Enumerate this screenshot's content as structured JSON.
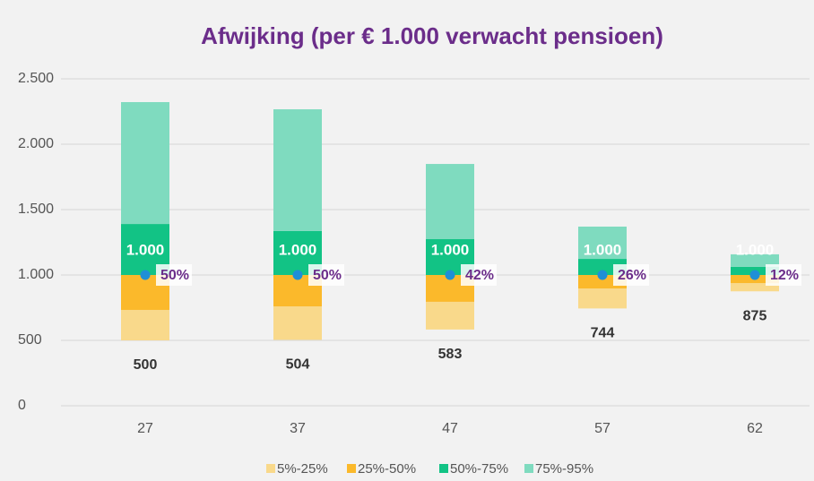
{
  "chart_data": {
    "type": "floating_stacked_bar",
    "title": "Afwijking (per € 1.000 verwacht pensioen)",
    "categories": [
      "27",
      "37",
      "47",
      "57",
      "62"
    ],
    "base_values": [
      500,
      504,
      583,
      744,
      875
    ],
    "series": [
      {
        "name": "5%-25%",
        "color": "#f9d98b",
        "values": [
          233,
          256,
          212,
          153,
          63
        ]
      },
      {
        "name": "25%-50%",
        "color": "#fbb92b",
        "values": [
          267,
          240,
          205,
          103,
          62
        ]
      },
      {
        "name": "50%-75%",
        "color": "#12c385",
        "values": [
          390,
          336,
          274,
          123,
          62
        ]
      },
      {
        "name": "75%-95%",
        "color": "#7fdbbf",
        "values": [
          932,
          931,
          575,
          247,
          96
        ]
      }
    ],
    "median_values": [
      1000,
      1000,
      1000,
      1000,
      1000
    ],
    "median_value_labels": [
      "1.000",
      "1.000",
      "1.000",
      "1.000",
      "1.000"
    ],
    "median_color": "#1f8fd6",
    "percent_labels": [
      "50%",
      "50%",
      "42%",
      "26%",
      "12%"
    ],
    "ylim": [
      0,
      2500
    ],
    "yticks": [
      0,
      500,
      {
        "value": 1000,
        "label": "1.000"
      },
      {
        "value": 1500,
        "label": "1.500"
      },
      {
        "value": 2000,
        "label": "2.000"
      },
      {
        "value": 2500,
        "label": "2.500"
      }
    ],
    "grid": true
  }
}
